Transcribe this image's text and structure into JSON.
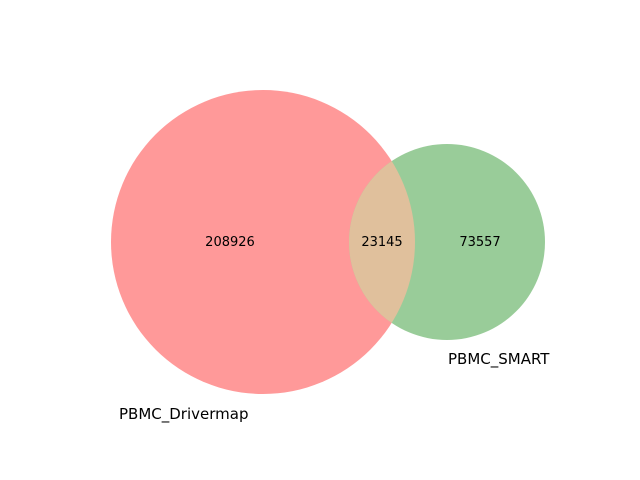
{
  "venn": {
    "sets": [
      {
        "name": "PBMC_Drivermap",
        "only_count": "208926",
        "color": "#ff9999"
      },
      {
        "name": "PBMC_SMART",
        "only_count": "73557",
        "color": "#99cc99"
      }
    ],
    "intersection": {
      "count": "23145",
      "color": "#e0c09c"
    }
  }
}
